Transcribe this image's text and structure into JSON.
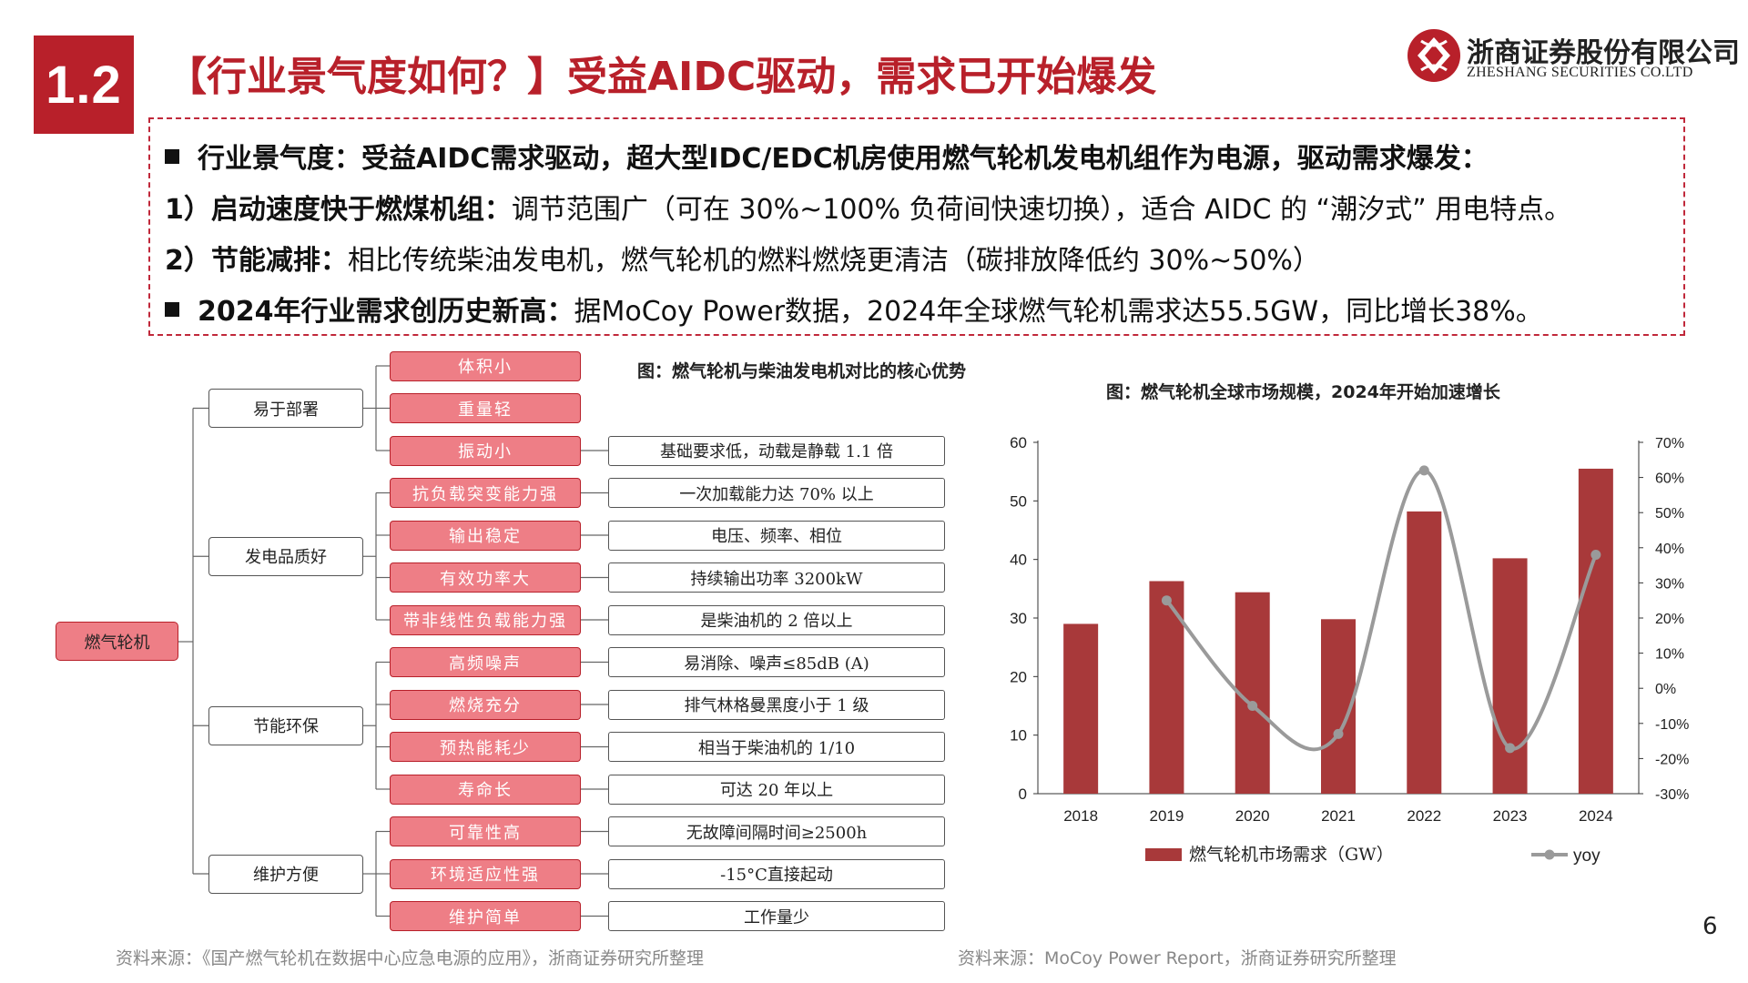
{
  "header": {
    "section_number": "1.2",
    "title": "【行业景气度如何？】受益AIDC驱动，需求已开始爆发",
    "logo_cn": "浙商证券股份有限公司",
    "logo_en": "ZHESHANG SECURITIES CO.LTD",
    "brand_color": "#b8202a"
  },
  "summary": {
    "line1": {
      "lead": "行业景气度：受益AIDC需求驱动，超大型IDC/EDC机房使用燃气轮机发电机组作为电源，驱动需求爆发：",
      "text": ""
    },
    "line2": {
      "lead": "1）启动速度快于燃煤机组：",
      "text": "调节范围广（可在 30%~100% 负荷间快速切换），适合 AIDC 的 “潮汐式” 用电特点。"
    },
    "line3": {
      "lead": "2）节能减排：",
      "text": "相比传统柴油发电机，燃气轮机的燃料燃烧更清洁（碳排放降低约 30%~50%）"
    },
    "line4": {
      "lead": "2024年行业需求创历史新高：",
      "text": "据MoCoy Power数据，2024年全球燃气轮机需求达55.5GW，同比增长38%。"
    }
  },
  "tree": {
    "caption": "图：燃气轮机与柴油发电机对比的核心优势",
    "root": "燃气轮机",
    "categories": [
      {
        "label": "易于部署",
        "features": [
          {
            "label": "体积小",
            "desc": ""
          },
          {
            "label": "重量轻",
            "desc": ""
          },
          {
            "label": "振动小",
            "desc": "基础要求低，动载是静载 1.1 倍"
          }
        ]
      },
      {
        "label": "发电品质好",
        "features": [
          {
            "label": "抗负载突变能力强",
            "desc": "一次加载能力达 70% 以上"
          },
          {
            "label": "输出稳定",
            "desc": "电压、频率、相位"
          },
          {
            "label": "有效功率大",
            "desc": "持续输出功率 3200kW"
          },
          {
            "label": "带非线性负载能力强",
            "desc": "是柴油机的 2 倍以上"
          }
        ]
      },
      {
        "label": "节能环保",
        "features": [
          {
            "label": "高频噪声",
            "desc": "易消除、噪声≤85dB (A)"
          },
          {
            "label": "燃烧充分",
            "desc": "排气林格曼黑度小于 1 级"
          },
          {
            "label": "预热能耗少",
            "desc": "相当于柴油机的 1/10"
          },
          {
            "label": "寿命长",
            "desc": "可达 20 年以上"
          }
        ]
      },
      {
        "label": "维护方便",
        "features": [
          {
            "label": "可靠性高",
            "desc": "无故障间隔时间≥2500h"
          },
          {
            "label": "环境适应性强",
            "desc": "-15°C直接起动"
          },
          {
            "label": "维护简单",
            "desc": "工作量少"
          }
        ]
      }
    ],
    "source": "资料来源：《国产燃气轮机在数据中心应急电源的应用》，浙商证券研究所整理"
  },
  "chart_data": {
    "type": "bar",
    "title": "图：燃气轮机全球市场规模，2024年开始加速增长",
    "categories": [
      "2018",
      "2019",
      "2020",
      "2021",
      "2022",
      "2023",
      "2024"
    ],
    "series": [
      {
        "name": "燃气轮机市场需求（GW）",
        "type": "bar",
        "axis": "left",
        "values": [
          29,
          36.3,
          34.4,
          29.8,
          48.2,
          40.2,
          55.5
        ],
        "color": "#a8393a"
      },
      {
        "name": "yoy",
        "type": "line",
        "axis": "right",
        "values": [
          null,
          25,
          -5,
          -13,
          62,
          -17,
          38
        ],
        "color": "#9a9a9a"
      }
    ],
    "ylim_left": [
      0,
      60
    ],
    "yticks_left": [
      "0",
      "10",
      "20",
      "30",
      "40",
      "50",
      "60"
    ],
    "ylim_right": [
      -30,
      70
    ],
    "yticks_right": [
      "-30%",
      "-20%",
      "-10%",
      "0%",
      "10%",
      "20%",
      "30%",
      "40%",
      "50%",
      "60%",
      "70%"
    ],
    "grid": false,
    "legend": "bottom",
    "source": "资料来源：MoCoy Power Report，浙商证券研究所整理"
  },
  "footer": {
    "page_number": "6"
  }
}
